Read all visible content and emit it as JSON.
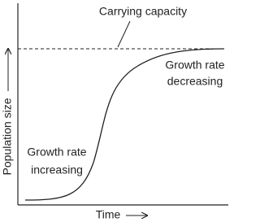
{
  "labels": {
    "carrying_capacity": "Carrying capacity",
    "increasing": [
      "Growth rate",
      "increasing"
    ],
    "decreasing": [
      "Growth rate",
      "decreasing"
    ]
  },
  "axes": {
    "y": "Population size",
    "x": "Time"
  }
}
